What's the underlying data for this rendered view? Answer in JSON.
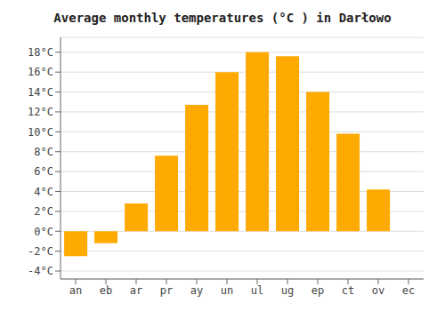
{
  "chart_data": {
    "type": "bar",
    "title": "Average monthly temperatures (°C ) in Darłowo",
    "categories": [
      "an",
      "eb",
      "ar",
      "pr",
      "ay",
      "un",
      "ul",
      "ug",
      "ep",
      "ct",
      "ov",
      "ec"
    ],
    "values": [
      -2.5,
      -1.2,
      2.8,
      7.6,
      12.7,
      16.0,
      18.0,
      17.6,
      14.0,
      9.8,
      4.2,
      0
    ],
    "color": "#FFAA00",
    "ylim": [
      -4.8,
      19.5
    ],
    "yticks": [
      {
        "value": -4,
        "label": "-4°C"
      },
      {
        "value": -2,
        "label": "-2°C"
      },
      {
        "value": 0,
        "label": "0°C"
      },
      {
        "value": 2,
        "label": "2°C"
      },
      {
        "value": 4,
        "label": "4°C"
      },
      {
        "value": 6,
        "label": "6°C"
      },
      {
        "value": 8,
        "label": "8°C"
      },
      {
        "value": 10,
        "label": "10°C"
      },
      {
        "value": 12,
        "label": "12°C"
      },
      {
        "value": 14,
        "label": "14°C"
      },
      {
        "value": 16,
        "label": "16°C"
      },
      {
        "value": 18,
        "label": "18°C"
      }
    ],
    "grid": true
  }
}
